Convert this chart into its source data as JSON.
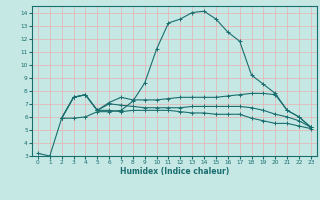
{
  "xlabel": "Humidex (Indice chaleur)",
  "ylabel": "",
  "bg_color": "#c5e8e5",
  "grid_color": "#e8b0b0",
  "line_color": "#1a6e6e",
  "xlim": [
    -0.5,
    23.5
  ],
  "ylim": [
    3,
    14.5
  ],
  "xticks": [
    0,
    1,
    2,
    3,
    4,
    5,
    6,
    7,
    8,
    9,
    10,
    11,
    12,
    13,
    14,
    15,
    16,
    17,
    18,
    19,
    20,
    21,
    22,
    23
  ],
  "yticks": [
    3,
    4,
    5,
    6,
    7,
    8,
    9,
    10,
    11,
    12,
    13,
    14
  ],
  "lines": [
    {
      "x": [
        0,
        1,
        2,
        3,
        4,
        5,
        6,
        7,
        8,
        9,
        10,
        11,
        12,
        13,
        14,
        15,
        16,
        17,
        18,
        19,
        20,
        21,
        22,
        23
      ],
      "y": [
        3.2,
        3.0,
        5.9,
        5.9,
        6.0,
        6.4,
        6.4,
        6.5,
        7.2,
        8.6,
        11.2,
        13.2,
        13.5,
        14.0,
        14.1,
        13.5,
        12.5,
        11.8,
        9.2,
        8.5,
        7.8,
        6.5,
        6.0,
        5.2
      ]
    },
    {
      "x": [
        2,
        3,
        4,
        5,
        6,
        7,
        8,
        9,
        10,
        11,
        12,
        13,
        14,
        15,
        16,
        17,
        18,
        19,
        20,
        21,
        22,
        23
      ],
      "y": [
        5.9,
        7.5,
        7.7,
        6.5,
        7.1,
        7.5,
        7.3,
        7.3,
        7.3,
        7.4,
        7.5,
        7.5,
        7.5,
        7.5,
        7.6,
        7.7,
        7.8,
        7.8,
        7.7,
        6.5,
        6.0,
        5.2
      ]
    },
    {
      "x": [
        2,
        3,
        4,
        5,
        6,
        7,
        8,
        9,
        10,
        11,
        12,
        13,
        14,
        15,
        16,
        17,
        18,
        19,
        20,
        21,
        22,
        23
      ],
      "y": [
        5.9,
        7.5,
        7.7,
        6.5,
        7.0,
        6.9,
        6.8,
        6.7,
        6.7,
        6.7,
        6.7,
        6.8,
        6.8,
        6.8,
        6.8,
        6.8,
        6.7,
        6.5,
        6.2,
        6.0,
        5.7,
        5.2
      ]
    },
    {
      "x": [
        2,
        3,
        4,
        5,
        6,
        7,
        8,
        9,
        10,
        11,
        12,
        13,
        14,
        15,
        16,
        17,
        18,
        19,
        20,
        21,
        22,
        23
      ],
      "y": [
        5.9,
        7.5,
        7.7,
        6.5,
        6.5,
        6.4,
        6.5,
        6.5,
        6.5,
        6.5,
        6.4,
        6.3,
        6.3,
        6.2,
        6.2,
        6.2,
        5.9,
        5.7,
        5.5,
        5.5,
        5.3,
        5.1
      ]
    }
  ]
}
